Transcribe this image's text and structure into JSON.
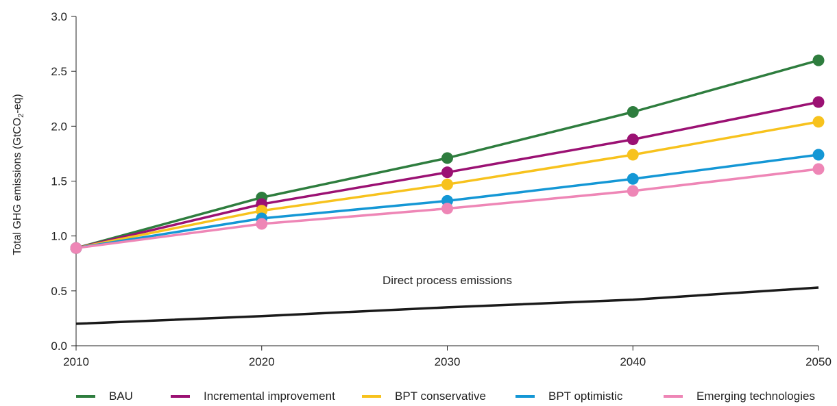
{
  "chart_data": {
    "type": "line",
    "title": "",
    "xlabel": "",
    "ylabel": "Total GHG emissions (GtCO",
    "ylabel_subscript": "2",
    "ylabel_suffix": "-eq)",
    "x": [
      2010,
      2020,
      2030,
      2040,
      2050
    ],
    "x_tick_labels": [
      "2010",
      "2020",
      "2030",
      "2040",
      "2050"
    ],
    "xlim": [
      2010,
      2050
    ],
    "ylim": [
      0,
      3.0
    ],
    "y_ticks": [
      0.0,
      0.5,
      1.0,
      1.5,
      2.0,
      2.5,
      3.0
    ],
    "y_tick_labels": [
      "0.0",
      "0.5",
      "1.0",
      "1.5",
      "2.0",
      "2.5",
      "3.0"
    ],
    "grid": false,
    "legend_position": "bottom",
    "series": [
      {
        "name": "BAU",
        "color": "#2e7d3e",
        "markers": true,
        "values": [
          0.89,
          1.35,
          1.71,
          2.13,
          2.6
        ]
      },
      {
        "name": "Incremental improvement",
        "color": "#9b1173",
        "markers": true,
        "values": [
          0.89,
          1.29,
          1.58,
          1.88,
          2.22
        ]
      },
      {
        "name": "BPT conservative",
        "color": "#f7c21d",
        "markers": true,
        "values": [
          0.89,
          1.23,
          1.47,
          1.74,
          2.04
        ]
      },
      {
        "name": "BPT optimistic",
        "color": "#1497d5",
        "markers": true,
        "values": [
          0.89,
          1.16,
          1.32,
          1.52,
          1.74
        ]
      },
      {
        "name": "Emerging technologies",
        "color": "#ee86b6",
        "markers": true,
        "values": [
          0.89,
          1.11,
          1.25,
          1.41,
          1.61
        ]
      }
    ],
    "unlabeled_series": [
      {
        "id": "direct-process",
        "color": "#1a1a1a",
        "markers": false,
        "values": [
          0.2,
          0.27,
          0.35,
          0.42,
          0.53
        ]
      }
    ],
    "annotations": [
      {
        "text": "Direct process emissions",
        "x": 2030,
        "y": 0.56
      }
    ]
  }
}
